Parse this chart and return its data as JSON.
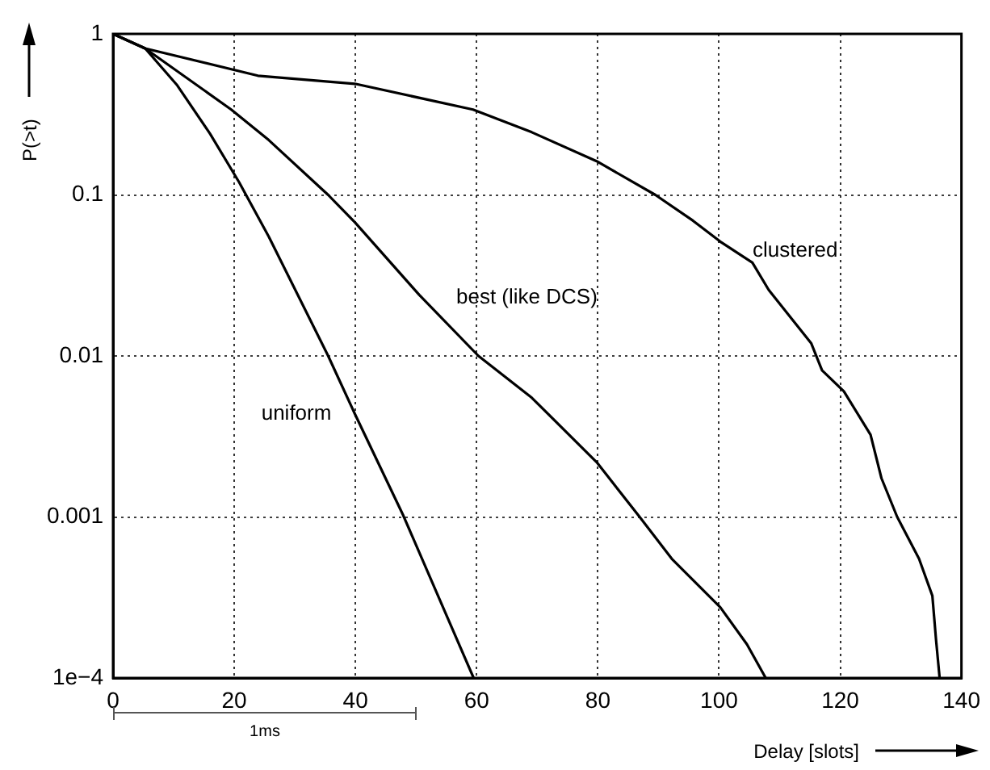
{
  "chart_data": {
    "type": "line",
    "xlabel": "Delay [slots]",
    "ylabel": "P(>t)",
    "log": "y",
    "grid": true,
    "legend": false,
    "marker": "none",
    "line_style": "solid",
    "xlim": [
      0,
      140
    ],
    "xticks": [
      0,
      20,
      40,
      60,
      80,
      100,
      120,
      140
    ],
    "ylim": [
      0.0001,
      1
    ],
    "yticks": [
      {
        "value": 0.0001,
        "label": "1e−4"
      },
      0.001,
      0.01,
      0.1,
      1
    ],
    "annotations": [
      "1ms"
    ],
    "series": [
      {
        "name": "uniform",
        "color": "#000000",
        "x": [
          0,
          5.3,
          10.6,
          16,
          20.8,
          25.7,
          35.5,
          39.9,
          47.9,
          59.5
        ],
        "values": [
          1,
          0.813,
          0.479,
          0.24,
          0.12,
          0.055,
          0.01,
          0.00437,
          0.00102,
          0.0001
        ]
      },
      {
        "name": "best (like DCS)",
        "color": "#000000",
        "x": [
          0,
          5.3,
          19.5,
          25.7,
          35.5,
          39.9,
          50.5,
          60.3,
          69.1,
          79.8,
          86.9,
          92.2,
          100.2,
          104.6,
          107.7
        ],
        "values": [
          1,
          0.813,
          0.339,
          0.219,
          0.1,
          0.0676,
          0.024,
          0.01,
          0.0055,
          0.00219,
          0.001,
          0.00055,
          0.000275,
          0.000162,
          0.0001
        ]
      },
      {
        "name": "clustered",
        "color": "#000000",
        "x": [
          0,
          5.3,
          23.9,
          39.9,
          59.4,
          69.1,
          79.8,
          89.5,
          95.7,
          100.2,
          105.5,
          108.2,
          115.2,
          117,
          120.6,
          125,
          126.8,
          129.4,
          133,
          135.2,
          135.8,
          136.4
        ],
        "values": [
          1,
          0.813,
          0.55,
          0.49,
          0.339,
          0.245,
          0.162,
          0.1,
          0.0692,
          0.0513,
          0.038,
          0.0257,
          0.012,
          0.00813,
          0.00603,
          0.00324,
          0.00174,
          0.001,
          0.00055,
          0.000324,
          0.000174,
          0.0001
        ]
      }
    ]
  }
}
